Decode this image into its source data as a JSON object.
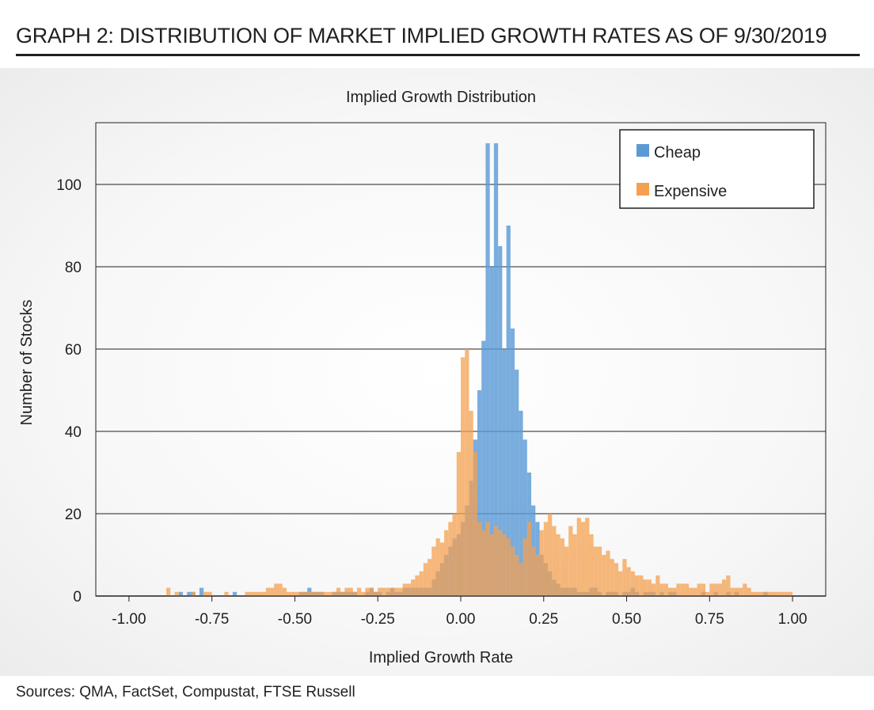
{
  "heading": "GRAPH 2: DISTRIBUTION OF MARKET IMPLIED GROWTH RATES AS OF 9/30/2019",
  "source": "Sources: QMA, FactSet, Compustat, FTSE Russell",
  "colors": {
    "cheap": "#5b9bd5",
    "expensive": "#f4a050",
    "overlap": "#b07a50",
    "grid": "#231f20"
  },
  "chart_data": {
    "type": "histogram",
    "title": "Implied Growth Distribution",
    "xlabel": "Implied Growth Rate",
    "ylabel": "Number of Stocks",
    "xlim": [
      -1.1,
      1.1
    ],
    "ylim": [
      0,
      115
    ],
    "xticks": [
      -1.0,
      -0.75,
      -0.5,
      -0.25,
      0.0,
      0.25,
      0.5,
      0.75,
      1.0
    ],
    "xtick_labels": [
      "-1.00",
      "-0.75",
      "-0.50",
      "-0.25",
      "0.00",
      "0.25",
      "0.50",
      "0.75",
      "1.00"
    ],
    "yticks": [
      0,
      20,
      40,
      60,
      80,
      100
    ],
    "ytick_labels": [
      "0",
      "20",
      "40",
      "60",
      "80",
      "100"
    ],
    "grid": true,
    "legend": {
      "position": "top-right",
      "entries": [
        "Cheap",
        "Expensive"
      ]
    },
    "bin_start": -1.0,
    "bin_width": 0.0125,
    "series": [
      {
        "name": "Cheap",
        "values": [
          0,
          0,
          0,
          0,
          0,
          0,
          0,
          0,
          0,
          0,
          0,
          0,
          1,
          0,
          1,
          1,
          0,
          2,
          0,
          0,
          0,
          0,
          0,
          0,
          0,
          1,
          0,
          0,
          0,
          0,
          0,
          0,
          0,
          0,
          0,
          0,
          0,
          0,
          0,
          0,
          0,
          1,
          1,
          2,
          1,
          1,
          1,
          0,
          0,
          1,
          1,
          1,
          1,
          1,
          1,
          0,
          0,
          1,
          2,
          1,
          1,
          0,
          1,
          2,
          1,
          1,
          2,
          2,
          2,
          2,
          2,
          2,
          2,
          4,
          6,
          8,
          10,
          12,
          14,
          15,
          18,
          22,
          28,
          38,
          50,
          62,
          110,
          80,
          110,
          85,
          60,
          90,
          65,
          55,
          45,
          38,
          30,
          22,
          18,
          10,
          8,
          6,
          4,
          3,
          2,
          2,
          2,
          2,
          1,
          1,
          1,
          2,
          2,
          1,
          0,
          1,
          1,
          1,
          0,
          1,
          1,
          2,
          1,
          0,
          1,
          1,
          1,
          0,
          1,
          0,
          1,
          1,
          0,
          0,
          0,
          0,
          0,
          0,
          1,
          0,
          0,
          1,
          0,
          0,
          1,
          0,
          1,
          0,
          0,
          0,
          0,
          0,
          0,
          1,
          0,
          0,
          0,
          0,
          0,
          0
        ]
      },
      {
        "name": "Expensive",
        "values": [
          0,
          0,
          0,
          0,
          0,
          0,
          0,
          0,
          0,
          2,
          0,
          1,
          0,
          0,
          0,
          1,
          0,
          0,
          1,
          1,
          0,
          0,
          0,
          1,
          0,
          0,
          0,
          0,
          1,
          1,
          1,
          1,
          1,
          2,
          2,
          3,
          3,
          2,
          1,
          1,
          1,
          1,
          1,
          1,
          1,
          1,
          1,
          1,
          1,
          1,
          2,
          1,
          2,
          2,
          1,
          2,
          1,
          2,
          2,
          1,
          2,
          2,
          2,
          2,
          2,
          2,
          3,
          3,
          4,
          5,
          6,
          8,
          9,
          12,
          14,
          13,
          16,
          18,
          20,
          35,
          58,
          60,
          45,
          35,
          18,
          16,
          18,
          15,
          17,
          16,
          15,
          14,
          12,
          10,
          8,
          14,
          18,
          12,
          10,
          16,
          18,
          20,
          17,
          15,
          14,
          12,
          17,
          15,
          19,
          18,
          19,
          15,
          12,
          12,
          10,
          11,
          9,
          8,
          6,
          9,
          7,
          6,
          5,
          5,
          4,
          4,
          3,
          5,
          3,
          3,
          2,
          2,
          3,
          3,
          3,
          2,
          2,
          3,
          3,
          1,
          3,
          3,
          3,
          4,
          5,
          2,
          2,
          2,
          3,
          2,
          1,
          1,
          1,
          1,
          1,
          1,
          1,
          1,
          1,
          1
        ]
      }
    ]
  }
}
